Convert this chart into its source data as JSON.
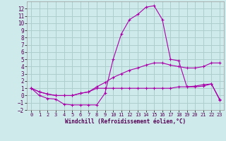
{
  "xlabel": "Windchill (Refroidissement éolien,°C)",
  "background_color": "#ceeaea",
  "grid_color": "#aecece",
  "line_color": "#aa00aa",
  "x": [
    0,
    1,
    2,
    3,
    4,
    5,
    6,
    7,
    8,
    9,
    10,
    11,
    12,
    13,
    14,
    15,
    16,
    17,
    18,
    19,
    20,
    21,
    22,
    23
  ],
  "line1": [
    1.0,
    0.0,
    -0.4,
    -0.5,
    -1.2,
    -1.3,
    -1.3,
    -1.3,
    -1.3,
    0.3,
    5.0,
    8.5,
    10.5,
    11.2,
    12.2,
    12.4,
    10.5,
    5.0,
    4.8,
    1.2,
    1.2,
    1.3,
    1.6,
    -0.6
  ],
  "line2": [
    1.0,
    0.5,
    0.2,
    0.0,
    0.0,
    0.0,
    0.3,
    0.5,
    1.2,
    1.8,
    2.5,
    3.0,
    3.5,
    3.8,
    4.2,
    4.5,
    4.5,
    4.2,
    4.0,
    3.8,
    3.8,
    4.0,
    4.5,
    4.5
  ],
  "line3": [
    1.0,
    0.5,
    0.2,
    0.0,
    0.0,
    0.0,
    0.3,
    0.5,
    1.0,
    1.0,
    1.0,
    1.0,
    1.0,
    1.0,
    1.0,
    1.0,
    1.0,
    1.0,
    1.2,
    1.2,
    1.3,
    1.5,
    1.6,
    -0.5
  ],
  "ylim": [
    -2,
    13
  ],
  "xlim": [
    -0.5,
    23.5
  ],
  "yticks": [
    -2,
    -1,
    0,
    1,
    2,
    3,
    4,
    5,
    6,
    7,
    8,
    9,
    10,
    11,
    12
  ],
  "xticks": [
    0,
    1,
    2,
    3,
    4,
    5,
    6,
    7,
    8,
    9,
    10,
    11,
    12,
    13,
    14,
    15,
    16,
    17,
    18,
    19,
    20,
    21,
    22,
    23
  ]
}
